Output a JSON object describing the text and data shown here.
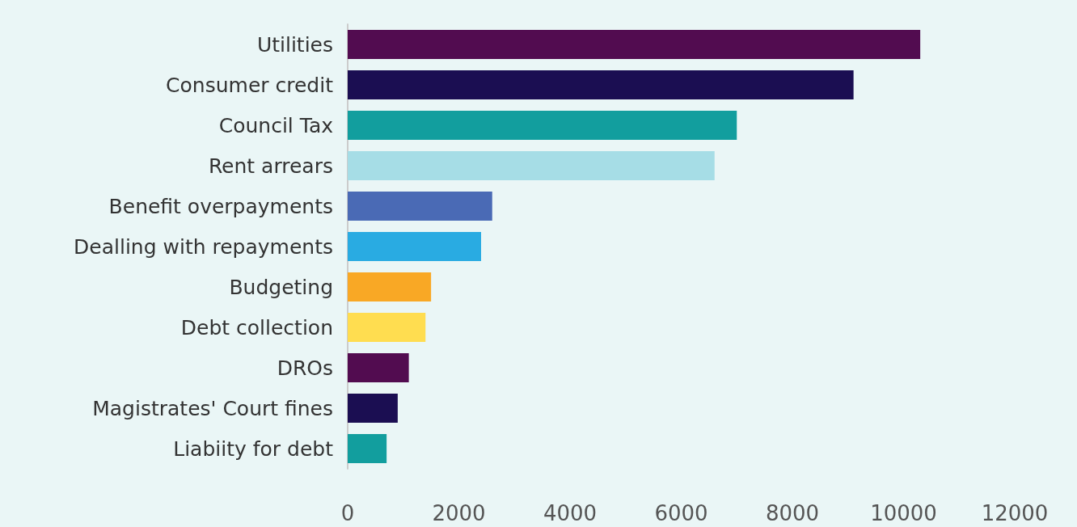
{
  "chart_data": {
    "type": "bar",
    "orientation": "horizontal",
    "categories": [
      "Utilities",
      "Consumer credit",
      "Council Tax",
      "Rent arrears",
      "Benefit overpayments",
      "Dealling with repayments",
      "Budgeting",
      "Debt collection",
      "DROs",
      "Magistrates' Court fines",
      "Liabiity for debt"
    ],
    "values": [
      10300,
      9100,
      7000,
      6600,
      2600,
      2400,
      1500,
      1400,
      1100,
      900,
      700
    ],
    "colors": [
      "#520c50",
      "#1b0e52",
      "#129e9e",
      "#a6dde6",
      "#4a6ab5",
      "#29abe2",
      "#f9a825",
      "#ffdd50",
      "#520c50",
      "#1b0e52",
      "#129e9e"
    ],
    "xlim": [
      0,
      12000
    ],
    "xticks": [
      0,
      2000,
      4000,
      6000,
      8000,
      10000,
      12000
    ],
    "grid": false
  }
}
